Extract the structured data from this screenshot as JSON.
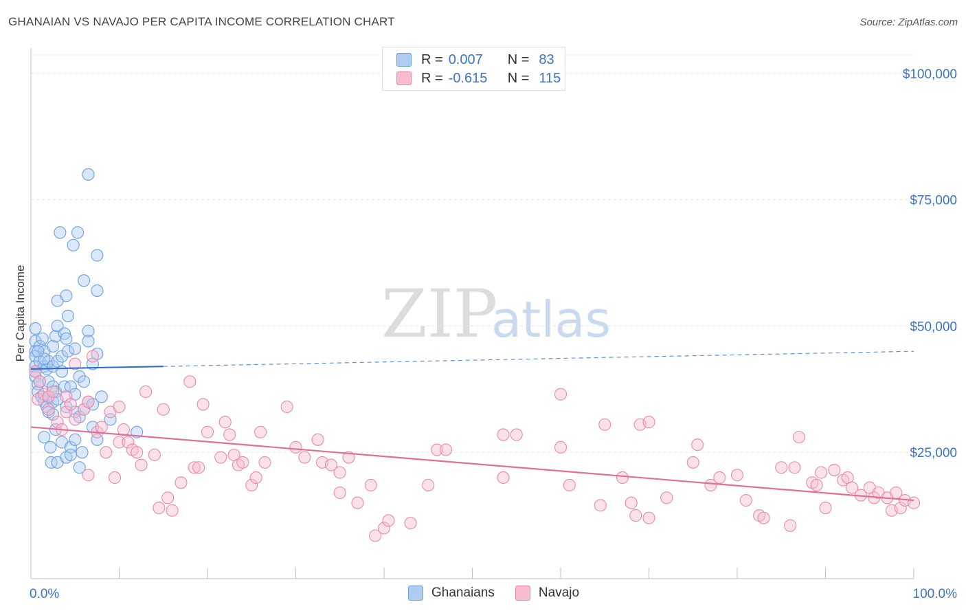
{
  "title": "GHANAIAN VS NAVAJO PER CAPITA INCOME CORRELATION CHART",
  "source": "Source: ZipAtlas.com",
  "legend": {
    "r_label": "R =",
    "n_label": "N =",
    "rows": [
      {
        "name": "Ghanaians",
        "r": "0.007",
        "n": "83",
        "color": "#aecbf2",
        "stroke": "#6a9fe0"
      },
      {
        "name": "Navajo",
        "r": "-0.615",
        "n": "115",
        "color": "#f7bcd0",
        "stroke": "#e889aa"
      }
    ]
  },
  "watermark": {
    "zip": "ZIP",
    "atlas": "atlas"
  },
  "chart_data": {
    "type": "scatter",
    "title": "GHANAIAN VS NAVAJO PER CAPITA INCOME CORRELATION CHART",
    "xlabel": "",
    "ylabel": "Per Capita Income",
    "xlim": [
      0,
      100
    ],
    "ylim": [
      0,
      105000
    ],
    "x_tick_labels": [
      "0.0%",
      "100.0%"
    ],
    "y_ticks": [
      25000,
      50000,
      75000,
      100000
    ],
    "y_tick_labels": [
      "$25,000",
      "$50,000",
      "$75,000",
      "$100,000"
    ],
    "series": [
      {
        "name": "Ghanaians",
        "color": "#6a9fe0",
        "fill": "#aecbf2",
        "trend": {
          "x0": 0,
          "y0": 41500,
          "x1": 15,
          "y1": 42000,
          "dashed_to_x": 100,
          "dashed_to_y": 45000
        },
        "points": [
          [
            0.5,
            49500
          ],
          [
            0.5,
            47000
          ],
          [
            0.5,
            45000
          ],
          [
            0.5,
            44000
          ],
          [
            0.5,
            42000
          ],
          [
            0.5,
            41000
          ],
          [
            0.5,
            40000
          ],
          [
            0.8,
            38500
          ],
          [
            0.8,
            37000
          ],
          [
            1,
            46000
          ],
          [
            1,
            43000
          ],
          [
            1,
            39000
          ],
          [
            1.2,
            36000
          ],
          [
            1.3,
            47500
          ],
          [
            1.5,
            45000
          ],
          [
            1.5,
            42000
          ],
          [
            1.5,
            35000
          ],
          [
            1.5,
            28000
          ],
          [
            1.8,
            41500
          ],
          [
            1.8,
            34000
          ],
          [
            2,
            43000
          ],
          [
            2,
            39000
          ],
          [
            2,
            36000
          ],
          [
            2,
            33000
          ],
          [
            2.2,
            26000
          ],
          [
            2.3,
            23000
          ],
          [
            2.5,
            46000
          ],
          [
            2.5,
            42000
          ],
          [
            2.5,
            38000
          ],
          [
            2.5,
            35000
          ],
          [
            2.5,
            32500
          ],
          [
            2.8,
            48000
          ],
          [
            2.8,
            37000
          ],
          [
            3,
            55000
          ],
          [
            3,
            50000
          ],
          [
            3,
            43000
          ],
          [
            3,
            35500
          ],
          [
            3,
            23000
          ],
          [
            3.3,
            68500
          ],
          [
            3.5,
            44000
          ],
          [
            3.5,
            41000
          ],
          [
            3.5,
            27000
          ],
          [
            3.8,
            48500
          ],
          [
            3.8,
            38000
          ],
          [
            4,
            56000
          ],
          [
            4,
            47500
          ],
          [
            4,
            34000
          ],
          [
            4,
            24000
          ],
          [
            4.2,
            52000
          ],
          [
            4.2,
            45000
          ],
          [
            4.5,
            38000
          ],
          [
            4.5,
            26000
          ],
          [
            4.5,
            24500
          ],
          [
            4.8,
            66000
          ],
          [
            5,
            45500
          ],
          [
            5,
            36500
          ],
          [
            5,
            27500
          ],
          [
            5,
            33000
          ],
          [
            5.3,
            68500
          ],
          [
            5.5,
            40000
          ],
          [
            5.5,
            32000
          ],
          [
            5.8,
            25000
          ],
          [
            6,
            59000
          ],
          [
            6,
            39000
          ],
          [
            6,
            33500
          ],
          [
            6.5,
            80000
          ],
          [
            6.5,
            49000
          ],
          [
            6.5,
            47000
          ],
          [
            6.5,
            35000
          ],
          [
            7,
            30000
          ],
          [
            7,
            42500
          ],
          [
            7,
            34500
          ],
          [
            7.5,
            64000
          ],
          [
            7.5,
            57000
          ],
          [
            7.5,
            44500
          ],
          [
            7.5,
            27500
          ],
          [
            8,
            36000
          ],
          [
            9,
            31500
          ],
          [
            1.5,
            43500
          ],
          [
            2.8,
            29500
          ],
          [
            5.5,
            22000
          ],
          [
            12,
            29000
          ],
          [
            0.8,
            45000
          ]
        ]
      },
      {
        "name": "Navajo",
        "color": "#e889aa",
        "fill": "#f7bcd0",
        "trend": {
          "x0": 0,
          "y0": 30000,
          "x1": 100,
          "y1": 15500
        },
        "points": [
          [
            0.5,
            41000
          ],
          [
            0.8,
            35500
          ],
          [
            1,
            39000
          ],
          [
            1.5,
            36500
          ],
          [
            2,
            36000
          ],
          [
            2,
            33500
          ],
          [
            2.5,
            37000
          ],
          [
            3,
            31000
          ],
          [
            3.5,
            29500
          ],
          [
            4,
            36000
          ],
          [
            4,
            33000
          ],
          [
            4.5,
            34500
          ],
          [
            5,
            31500
          ],
          [
            5,
            42500
          ],
          [
            6,
            33500
          ],
          [
            6.5,
            35000
          ],
          [
            6.5,
            20500
          ],
          [
            7,
            44000
          ],
          [
            7.5,
            29000
          ],
          [
            8,
            30000
          ],
          [
            8.5,
            25000
          ],
          [
            9,
            33000
          ],
          [
            9.5,
            20000
          ],
          [
            10,
            34000
          ],
          [
            10,
            27000
          ],
          [
            10.5,
            29500
          ],
          [
            11,
            27000
          ],
          [
            11.5,
            25500
          ],
          [
            12,
            25000
          ],
          [
            12.5,
            22500
          ],
          [
            13,
            37000
          ],
          [
            14,
            24500
          ],
          [
            14.5,
            14000
          ],
          [
            15,
            33500
          ],
          [
            15.5,
            16000
          ],
          [
            16,
            13500
          ],
          [
            17,
            19000
          ],
          [
            18,
            39000
          ],
          [
            18.5,
            22000
          ],
          [
            19,
            22000
          ],
          [
            19.5,
            34500
          ],
          [
            20,
            29000
          ],
          [
            21.5,
            24000
          ],
          [
            22,
            31000
          ],
          [
            22.5,
            28500
          ],
          [
            23,
            24500
          ],
          [
            23.5,
            22500
          ],
          [
            24,
            23000
          ],
          [
            25,
            18500
          ],
          [
            25.5,
            20000
          ],
          [
            26,
            29000
          ],
          [
            26.5,
            23000
          ],
          [
            29,
            34000
          ],
          [
            30,
            26000
          ],
          [
            31,
            24000
          ],
          [
            32.5,
            27500
          ],
          [
            33,
            23000
          ],
          [
            34,
            22500
          ],
          [
            35,
            21000
          ],
          [
            35,
            17000
          ],
          [
            36,
            24000
          ],
          [
            37,
            15000
          ],
          [
            38.5,
            18500
          ],
          [
            39,
            8500
          ],
          [
            40,
            10000
          ],
          [
            40.5,
            11500
          ],
          [
            43,
            11000
          ],
          [
            45,
            18500
          ],
          [
            46,
            25500
          ],
          [
            47,
            25500
          ],
          [
            53.5,
            20000
          ],
          [
            53.5,
            28500
          ],
          [
            55,
            28500
          ],
          [
            60,
            26000
          ],
          [
            60,
            36500
          ],
          [
            61,
            18500
          ],
          [
            64.5,
            14500
          ],
          [
            65,
            30500
          ],
          [
            67,
            20000
          ],
          [
            68,
            15000
          ],
          [
            68.5,
            12500
          ],
          [
            69,
            30500
          ],
          [
            70,
            12000
          ],
          [
            70,
            31000
          ],
          [
            72,
            16000
          ],
          [
            75,
            23000
          ],
          [
            75.5,
            26500
          ],
          [
            77,
            18500
          ],
          [
            78,
            20000
          ],
          [
            80,
            20500
          ],
          [
            81,
            15500
          ],
          [
            82.5,
            12500
          ],
          [
            83,
            12000
          ],
          [
            85,
            22000
          ],
          [
            86,
            10500
          ],
          [
            86.5,
            22000
          ],
          [
            87,
            28000
          ],
          [
            88.5,
            19000
          ],
          [
            89,
            18500
          ],
          [
            89.5,
            21000
          ],
          [
            90,
            14000
          ],
          [
            91,
            21500
          ],
          [
            92,
            19500
          ],
          [
            92.5,
            20000
          ],
          [
            93,
            18000
          ],
          [
            94,
            16500
          ],
          [
            95,
            18000
          ],
          [
            95.5,
            16000
          ],
          [
            96,
            17000
          ],
          [
            97,
            16000
          ],
          [
            97.5,
            13500
          ],
          [
            98,
            17000
          ],
          [
            98.5,
            14000
          ],
          [
            99,
            15500
          ],
          [
            100,
            15000
          ]
        ]
      }
    ]
  }
}
